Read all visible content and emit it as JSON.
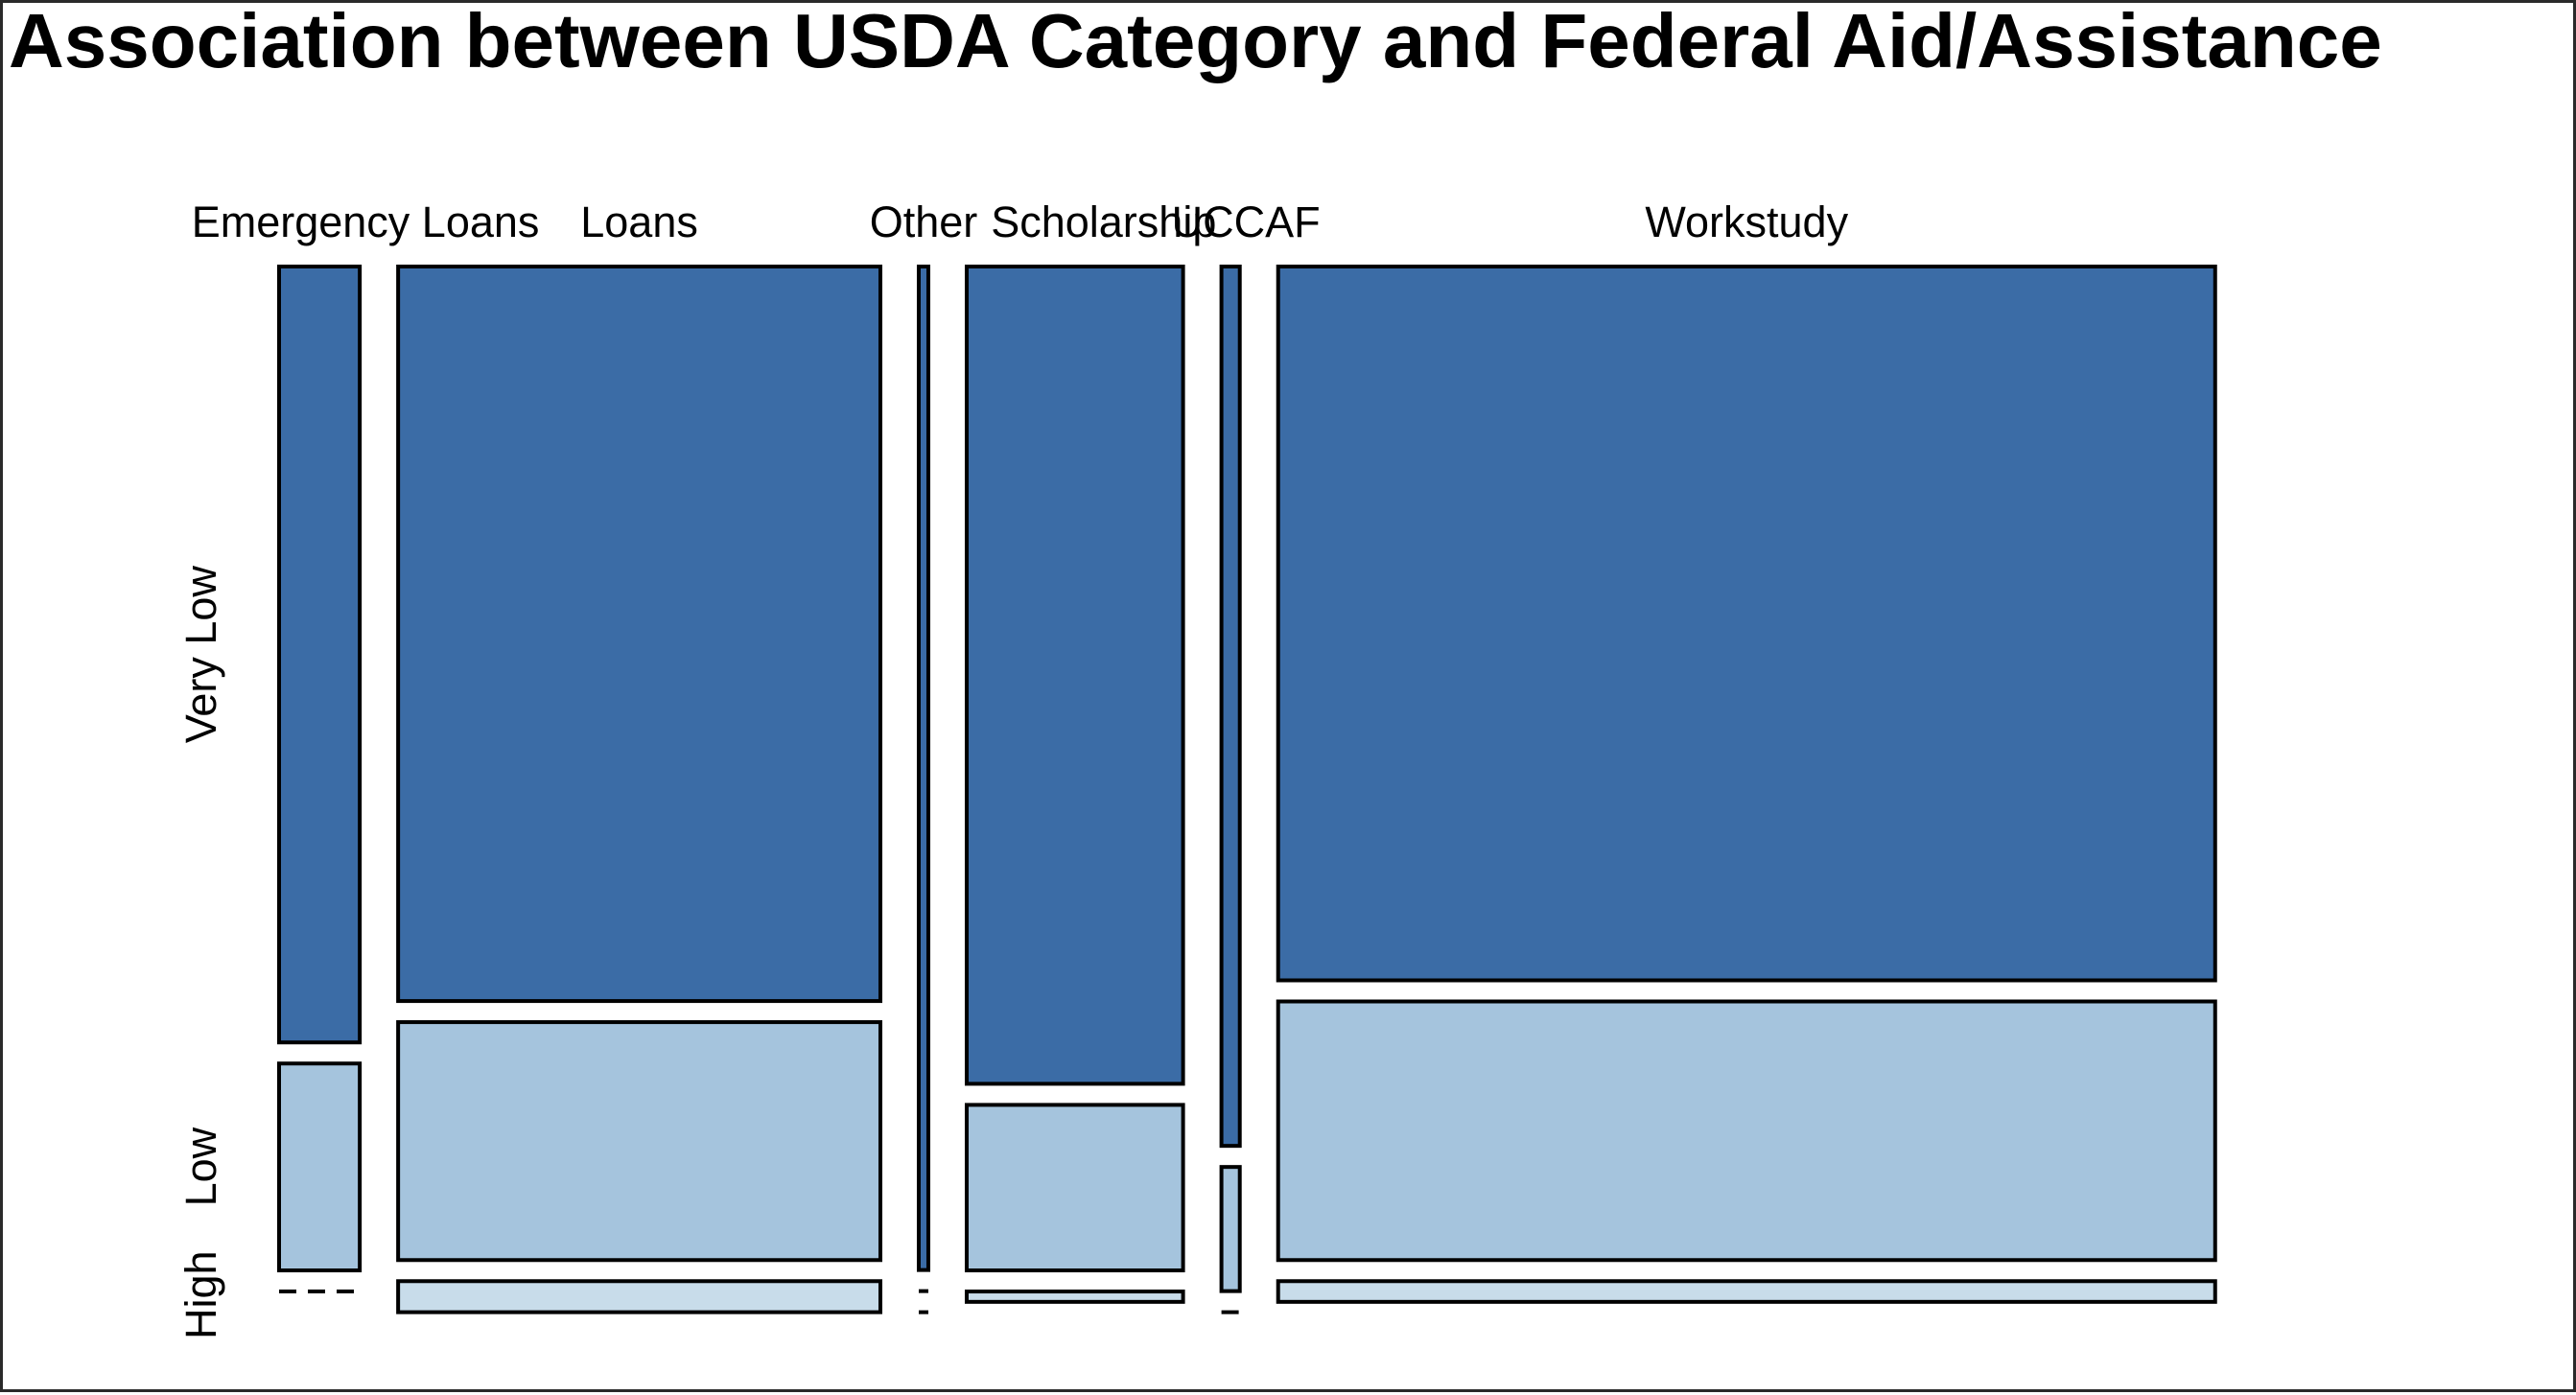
{
  "chart_data": {
    "type": "mosaic",
    "title": "Association between USDA Category and Federal Aid/Assistance",
    "xlabel": "",
    "ylabel": "",
    "categories": [
      "Emergency Loans",
      "Loans",
      "Other",
      "Scholarship",
      "UCCAF",
      "Workstudy"
    ],
    "levels": [
      "Very Low",
      "Low",
      "High"
    ],
    "column_share": [
      0.044,
      0.263,
      0.005,
      0.118,
      0.01,
      0.511
    ],
    "row_share": [
      [
        0.75,
        0.2,
        0.0
      ],
      [
        0.71,
        0.23,
        0.03
      ],
      [
        0.97,
        0.0,
        0.0
      ],
      [
        0.79,
        0.16,
        0.01
      ],
      [
        0.85,
        0.12,
        0.0
      ],
      [
        0.69,
        0.25,
        0.02
      ]
    ],
    "colors": {
      "Very Low": "#3b6ca6",
      "Low": "#a5c4dd",
      "High": "#c8dcea"
    },
    "legend": "none",
    "grid": false
  }
}
